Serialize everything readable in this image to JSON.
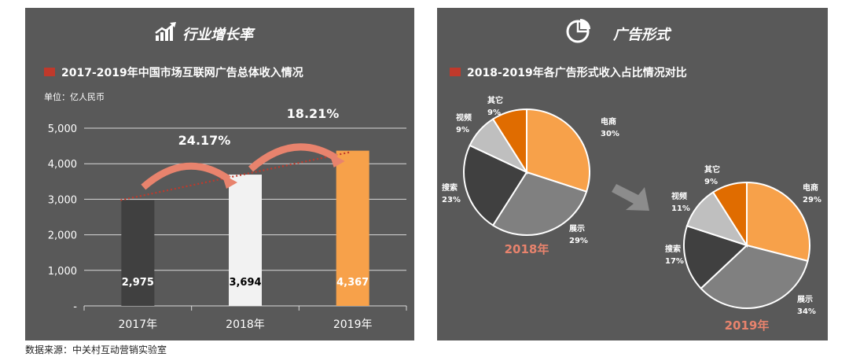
{
  "left_panel": {
    "header_title": "行业增长率",
    "chart_title": "2017-2019年中国市场互联网广告总体收入情况",
    "unit_label": "单位：亿人民币"
  },
  "right_panel": {
    "header_title": "广告形式",
    "chart_title": "2018-2019年各广告形式收入占比情况对比"
  },
  "source": "数据来源：中关村互动营销实验室",
  "colors": {
    "panel_bg": "#595959",
    "title_marker": "#c0392b",
    "growth_accent": "#e8836d",
    "bar_2017": "#404040",
    "bar_2018": "#f2f2f2",
    "bar_2019": "#f7a14a",
    "pie_ecommerce": "#f7a14a",
    "pie_display": "#808080",
    "pie_search": "#404040",
    "pie_video": "#bfbfbf",
    "pie_other": "#e06c00"
  },
  "chart_data": [
    {
      "type": "bar",
      "title": "2017-2019年中国市场互联网广告总体收入情况",
      "categories": [
        "2017年",
        "2018年",
        "2019年"
      ],
      "values": [
        2975,
        3694,
        4367
      ],
      "value_labels": [
        "2,975",
        "3,694",
        "4,367"
      ],
      "ylim": [
        0,
        5000
      ],
      "yticks": [
        "-",
        "1,000",
        "2,000",
        "3,000",
        "4,000",
        "5,000"
      ],
      "ytick_values": [
        0,
        1000,
        2000,
        3000,
        4000,
        5000
      ],
      "grid": true,
      "growth_labels": [
        "24.17%",
        "18.21%"
      ],
      "trendline": "dotted"
    },
    {
      "type": "pie",
      "caption": "2018年",
      "slices": [
        {
          "label": "电商",
          "value": 30,
          "value_label": "30%"
        },
        {
          "label": "展示",
          "value": 29,
          "value_label": "29%"
        },
        {
          "label": "搜索",
          "value": 23,
          "value_label": "23%"
        },
        {
          "label": "视频",
          "value": 9,
          "value_label": "9%"
        },
        {
          "label": "其它",
          "value": 9,
          "value_label": "9%"
        }
      ]
    },
    {
      "type": "pie",
      "caption": "2019年",
      "slices": [
        {
          "label": "电商",
          "value": 29,
          "value_label": "29%"
        },
        {
          "label": "展示",
          "value": 34,
          "value_label": "34%"
        },
        {
          "label": "搜索",
          "value": 17,
          "value_label": "17%"
        },
        {
          "label": "视频",
          "value": 11,
          "value_label": "11%"
        },
        {
          "label": "其它",
          "value": 9,
          "value_label": "9%"
        }
      ]
    }
  ]
}
